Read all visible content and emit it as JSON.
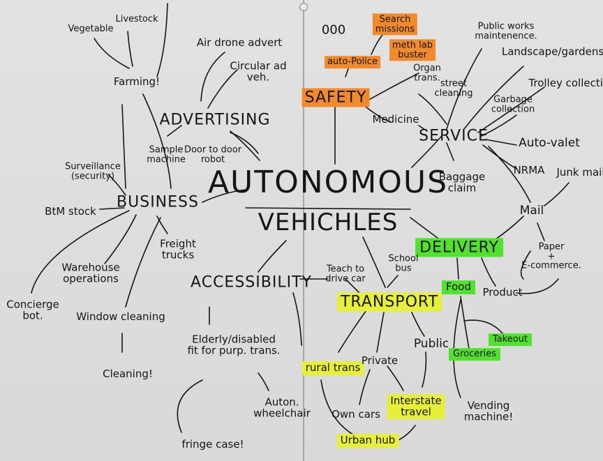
{
  "center": {
    "line1": "AUTONOMOUS",
    "line2": "VEHICHLES"
  },
  "branches": {
    "advertising": "ADVERTISING",
    "business": "BUSINESS",
    "accessibility": "ACCESSIBILITY",
    "safety": "SAFETY",
    "service": "SERVICE",
    "delivery": "DELIVERY",
    "transport": "TRANSPORT"
  },
  "advertising": {
    "airdrone": "Air drone advert",
    "circular": "Circular ad\nveh.",
    "sample": "Sample\nmachine",
    "door": "Door to door\nrobot"
  },
  "farming": {
    "label": "Farming!",
    "vegetable": "Vegetable",
    "livestock": "Livestock"
  },
  "business": {
    "surveillance": "Surveillance\n(security)",
    "btm": "BtM stock",
    "concierge": "Concierge\nbot.",
    "warehouse": "Warehouse\noperations",
    "freight": "Freight\ntrucks",
    "window": "Window cleaning",
    "cleaning": "Cleaning!"
  },
  "accessibility": {
    "elderly": "Elderly/disabled\nfit for purp. trans.",
    "fringe": "fringe case!",
    "wheelchair": "Auton.\nwheelchair",
    "teach": "Teach to\ndrive car"
  },
  "safety": {
    "ooo": "000",
    "police": "auto-Police",
    "search": "Search\nmissions",
    "meth": "meth lab\nbuster",
    "organ": "Organ\ntrans.",
    "medicine": "Medicine"
  },
  "service": {
    "public_works": "Public works\nmaintenence.",
    "landscape": "Landscape/gardens",
    "trolley": "Trolley collection",
    "street": "street\ncleaning",
    "garbage": "Garbage\ncollection",
    "autovalet": "Auto-valet",
    "nrma": "NRMA",
    "baggage": "Baggage\nclaim"
  },
  "delivery": {
    "mail": "Mail",
    "junkmail": "Junk mail",
    "paper": "Paper\n+\nE-commerce.",
    "food": "Food",
    "product": "Product",
    "groceries": "Groceries",
    "takeout": "Takeout",
    "vending": "Vending\nmachine!"
  },
  "transport": {
    "school": "School\nbus",
    "rural": "rural trans",
    "private": "Private",
    "public": "Public",
    "owncars": "Own cars",
    "interstate": "Interstate\ntravel",
    "urbanhub": "Urban hub"
  },
  "colors": {
    "ink": "#151515",
    "paper": "#dcdcdc",
    "orange_highlight": "#f08a2c",
    "green_highlight": "#52e12e",
    "yellow_highlight": "#e6ef3a",
    "teal_highlight": "#9fe4e8"
  }
}
